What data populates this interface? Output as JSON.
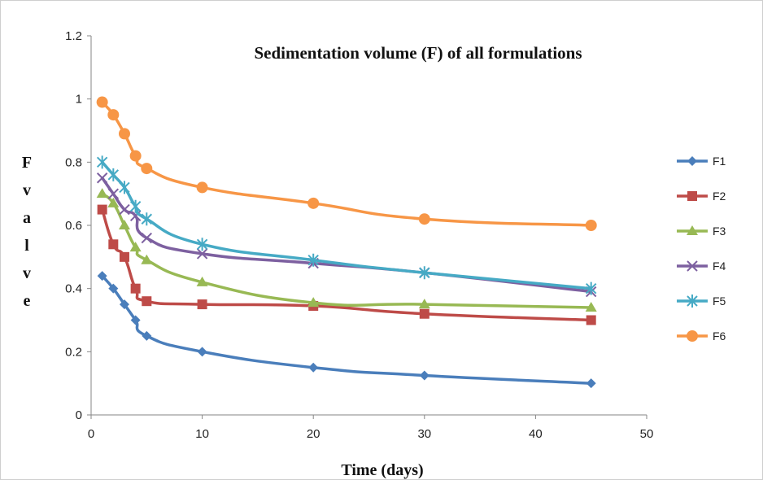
{
  "chart_data": {
    "type": "line",
    "title": "Sedimentation volume (F) of all formulations",
    "xlabel": "Time (days)",
    "ylabel": "F value",
    "ylabel_chars": [
      "F",
      "v",
      "a",
      "l",
      "v",
      "e"
    ],
    "xlim": [
      0,
      50
    ],
    "ylim": [
      0,
      1.2
    ],
    "x_ticks": [
      0,
      10,
      20,
      30,
      40,
      50
    ],
    "y_ticks": [
      0,
      0.2,
      0.4,
      0.6,
      0.8,
      1,
      1.2
    ],
    "x_tick_labels": [
      "0",
      "10",
      "20",
      "30",
      "40",
      "50"
    ],
    "y_tick_labels": [
      "0",
      "0.2",
      "0.4",
      "0.6",
      "0.8",
      "1",
      "1.2"
    ],
    "grid": false,
    "legend_position": "right",
    "x": [
      1,
      2,
      3,
      4,
      5,
      10,
      20,
      30,
      45
    ],
    "series": [
      {
        "name": "F1",
        "color": "#4a7ebb",
        "marker": "diamond",
        "values": [
          0.44,
          0.4,
          0.35,
          0.3,
          0.25,
          0.2,
          0.15,
          0.125,
          0.1
        ]
      },
      {
        "name": "F2",
        "color": "#be4b48",
        "marker": "square",
        "values": [
          0.65,
          0.54,
          0.5,
          0.4,
          0.36,
          0.35,
          0.345,
          0.32,
          0.3
        ]
      },
      {
        "name": "F3",
        "color": "#98b954",
        "marker": "triangle",
        "values": [
          0.7,
          0.67,
          0.6,
          0.53,
          0.49,
          0.42,
          0.355,
          0.35,
          0.34
        ]
      },
      {
        "name": "F4",
        "color": "#7d60a0",
        "marker": "x",
        "values": [
          0.75,
          0.7,
          0.65,
          0.63,
          0.56,
          0.51,
          0.48,
          0.45,
          0.39
        ]
      },
      {
        "name": "F5",
        "color": "#46aac5",
        "marker": "star",
        "values": [
          0.8,
          0.76,
          0.72,
          0.66,
          0.62,
          0.54,
          0.49,
          0.45,
          0.4
        ]
      },
      {
        "name": "F6",
        "color": "#f79646",
        "marker": "circle",
        "values": [
          0.99,
          0.95,
          0.89,
          0.82,
          0.78,
          0.72,
          0.67,
          0.62,
          0.6
        ]
      }
    ]
  }
}
